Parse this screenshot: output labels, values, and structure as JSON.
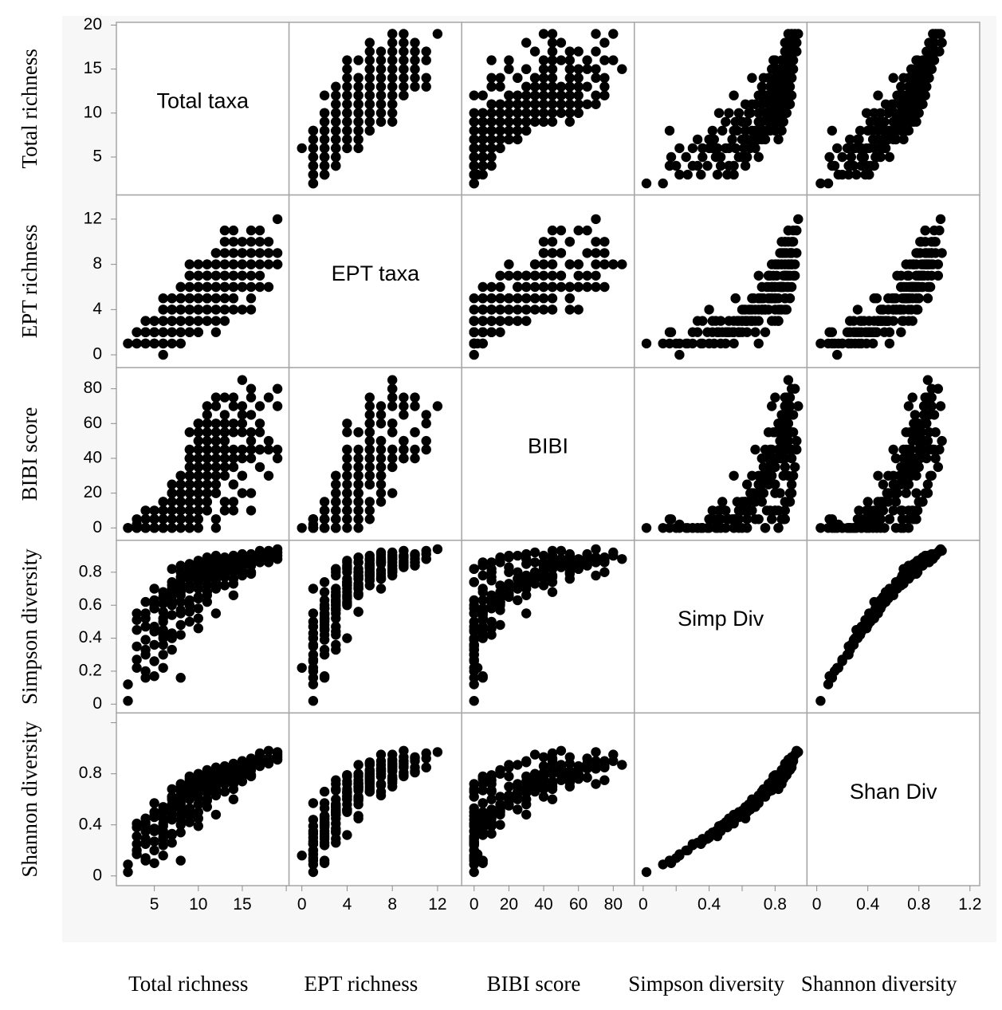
{
  "chart_data": {
    "type": "scatter",
    "variables": [
      {
        "key": "total",
        "axis_label": "Total richness",
        "diagonal_label": "Total taxa",
        "range": [
          1.5,
          19.5
        ],
        "ticks": [
          5,
          10,
          15,
          20
        ],
        "x_tick_labels": [
          "5",
          "10",
          "15"
        ],
        "y_tick_labels": [
          "5",
          "10",
          "15",
          "20"
        ]
      },
      {
        "key": "ept",
        "axis_label": "EPT richness",
        "diagonal_label": "EPT taxa",
        "range": [
          -0.5,
          13.5
        ],
        "ticks": [
          0,
          4,
          8,
          12
        ],
        "x_tick_labels": [
          "0",
          "4",
          "8",
          "12"
        ],
        "y_tick_labels": [
          "0",
          "4",
          "8",
          "12"
        ]
      },
      {
        "key": "bibi",
        "axis_label": "BIBI score",
        "diagonal_label": "BIBI",
        "range": [
          -3,
          88
        ],
        "ticks": [
          0,
          20,
          40,
          60,
          80
        ],
        "x_tick_labels": [
          "0",
          "20",
          "40",
          "60",
          "80"
        ],
        "y_tick_labels": [
          "0",
          "20",
          "40",
          "60",
          "80"
        ]
      },
      {
        "key": "simpson",
        "axis_label": "Simpson diversity",
        "diagonal_label": "Simp Div",
        "range": [
          -0.01,
          0.95
        ],
        "ticks": [
          0,
          0.2,
          0.4,
          0.6,
          0.8
        ],
        "x_tick_labels": [
          "0",
          "0.4",
          "0.8"
        ],
        "y_tick_labels": [
          "0",
          "0.2",
          "0.4",
          "0.6",
          "0.8"
        ]
      },
      {
        "key": "shannon",
        "axis_label": "Shannon diversity",
        "diagonal_label": "Shan Div",
        "range": [
          -0.02,
          1.22
        ],
        "ticks": [
          0,
          0.4,
          0.8,
          1.2
        ],
        "x_tick_labels": [
          "0",
          "0.4",
          "0.8",
          "1.2"
        ],
        "y_tick_labels": [
          "0",
          "0.4",
          "0.8"
        ]
      }
    ],
    "points": [
      [
        2,
        1,
        0,
        0.02,
        0.03
      ],
      [
        3,
        1,
        2,
        0.22,
        0.17
      ],
      [
        3,
        2,
        5,
        0.51,
        0.38
      ],
      [
        3,
        1,
        0,
        0.27,
        0.2
      ],
      [
        3,
        2,
        0,
        0.45,
        0.31
      ],
      [
        4,
        1,
        0,
        0.3,
        0.25
      ],
      [
        4,
        2,
        5,
        0.55,
        0.42
      ],
      [
        4,
        3,
        10,
        0.62,
        0.45
      ],
      [
        4,
        1,
        0,
        0.2,
        0.14
      ],
      [
        4,
        2,
        0,
        0.39,
        0.29
      ],
      [
        5,
        2,
        5,
        0.17,
        0.1
      ],
      [
        5,
        3,
        5,
        0.63,
        0.5
      ],
      [
        5,
        1,
        0,
        0.26,
        0.2
      ],
      [
        5,
        2,
        10,
        0.58,
        0.47
      ],
      [
        5,
        3,
        5,
        0.47,
        0.37
      ],
      [
        5,
        1,
        0,
        0.36,
        0.27
      ],
      [
        6,
        0,
        0,
        0.22,
        0.16
      ],
      [
        6,
        2,
        5,
        0.45,
        0.35
      ],
      [
        6,
        3,
        15,
        0.68,
        0.54
      ],
      [
        6,
        4,
        10,
        0.65,
        0.52
      ],
      [
        6,
        5,
        5,
        0.56,
        0.45
      ],
      [
        6,
        1,
        0,
        0.4,
        0.3
      ],
      [
        6,
        2,
        0,
        0.3,
        0.24
      ],
      [
        6,
        3,
        5,
        0.52,
        0.41
      ],
      [
        7,
        1,
        5,
        0.43,
        0.33
      ],
      [
        7,
        3,
        10,
        0.6,
        0.48
      ],
      [
        7,
        4,
        20,
        0.7,
        0.6
      ],
      [
        7,
        5,
        15,
        0.72,
        0.62
      ],
      [
        7,
        2,
        5,
        0.54,
        0.44
      ],
      [
        7,
        3,
        20,
        0.66,
        0.55
      ],
      [
        7,
        4,
        5,
        0.4,
        0.32
      ],
      [
        8,
        1,
        5,
        0.16,
        0.12
      ],
      [
        8,
        3,
        30,
        0.66,
        0.56
      ],
      [
        8,
        4,
        20,
        0.73,
        0.63
      ],
      [
        8,
        5,
        10,
        0.77,
        0.67
      ],
      [
        8,
        6,
        25,
        0.8,
        0.7
      ],
      [
        8,
        2,
        15,
        0.48,
        0.4
      ],
      [
        8,
        3,
        5,
        0.42,
        0.34
      ],
      [
        8,
        4,
        15,
        0.62,
        0.52
      ],
      [
        8,
        5,
        30,
        0.7,
        0.6
      ],
      [
        8,
        6,
        10,
        0.75,
        0.66
      ],
      [
        9,
        2,
        10,
        0.5,
        0.42
      ],
      [
        9,
        3,
        25,
        0.7,
        0.6
      ],
      [
        9,
        4,
        35,
        0.76,
        0.66
      ],
      [
        9,
        5,
        20,
        0.8,
        0.7
      ],
      [
        9,
        6,
        45,
        0.82,
        0.74
      ],
      [
        9,
        7,
        30,
        0.85,
        0.78
      ],
      [
        9,
        8,
        40,
        0.78,
        0.7
      ],
      [
        9,
        3,
        15,
        0.6,
        0.51
      ],
      [
        9,
        4,
        40,
        0.72,
        0.62
      ],
      [
        9,
        5,
        5,
        0.56,
        0.47
      ],
      [
        10,
        3,
        20,
        0.65,
        0.56
      ],
      [
        10,
        4,
        30,
        0.74,
        0.65
      ],
      [
        10,
        5,
        45,
        0.78,
        0.7
      ],
      [
        10,
        6,
        50,
        0.83,
        0.75
      ],
      [
        10,
        7,
        60,
        0.86,
        0.8
      ],
      [
        10,
        8,
        35,
        0.8,
        0.73
      ],
      [
        10,
        2,
        10,
        0.46,
        0.39
      ],
      [
        10,
        5,
        25,
        0.7,
        0.61
      ],
      [
        10,
        6,
        40,
        0.76,
        0.68
      ],
      [
        10,
        4,
        55,
        0.82,
        0.74
      ],
      [
        11,
        3,
        15,
        0.62,
        0.54
      ],
      [
        11,
        4,
        25,
        0.72,
        0.65
      ],
      [
        11,
        5,
        55,
        0.8,
        0.73
      ],
      [
        11,
        6,
        40,
        0.84,
        0.78
      ],
      [
        11,
        7,
        50,
        0.87,
        0.82
      ],
      [
        11,
        8,
        60,
        0.82,
        0.76
      ],
      [
        11,
        5,
        30,
        0.76,
        0.69
      ],
      [
        11,
        6,
        70,
        0.78,
        0.72
      ],
      [
        11,
        4,
        45,
        0.68,
        0.6
      ],
      [
        11,
        7,
        35,
        0.86,
        0.8
      ],
      [
        12,
        4,
        45,
        0.74,
        0.68
      ],
      [
        12,
        5,
        35,
        0.78,
        0.72
      ],
      [
        12,
        6,
        60,
        0.84,
        0.79
      ],
      [
        12,
        7,
        50,
        0.86,
        0.82
      ],
      [
        12,
        8,
        70,
        0.88,
        0.84
      ],
      [
        12,
        9,
        40,
        0.83,
        0.78
      ],
      [
        12,
        3,
        30,
        0.55,
        0.48
      ],
      [
        12,
        6,
        75,
        0.8,
        0.75
      ],
      [
        12,
        5,
        55,
        0.76,
        0.7
      ],
      [
        12,
        7,
        20,
        0.7,
        0.63
      ],
      [
        13,
        5,
        40,
        0.8,
        0.75
      ],
      [
        13,
        6,
        55,
        0.84,
        0.8
      ],
      [
        13,
        7,
        65,
        0.87,
        0.84
      ],
      [
        13,
        8,
        75,
        0.89,
        0.86
      ],
      [
        13,
        9,
        45,
        0.85,
        0.81
      ],
      [
        13,
        11,
        50,
        0.88,
        0.85
      ],
      [
        13,
        4,
        30,
        0.72,
        0.66
      ],
      [
        13,
        6,
        35,
        0.78,
        0.73
      ],
      [
        13,
        8,
        60,
        0.82,
        0.78
      ],
      [
        14,
        4,
        10,
        0.66,
        0.6
      ],
      [
        14,
        6,
        45,
        0.83,
        0.8
      ],
      [
        14,
        7,
        70,
        0.86,
        0.84
      ],
      [
        14,
        8,
        55,
        0.9,
        0.88
      ],
      [
        14,
        9,
        75,
        0.87,
        0.85
      ],
      [
        14,
        10,
        40,
        0.84,
        0.81
      ],
      [
        14,
        7,
        25,
        0.76,
        0.72
      ],
      [
        14,
        5,
        35,
        0.73,
        0.68
      ],
      [
        15,
        6,
        60,
        0.85,
        0.83
      ],
      [
        15,
        8,
        85,
        0.88,
        0.87
      ],
      [
        15,
        9,
        45,
        0.9,
        0.9
      ],
      [
        15,
        10,
        70,
        0.86,
        0.85
      ],
      [
        15,
        7,
        40,
        0.81,
        0.78
      ],
      [
        15,
        8,
        55,
        0.84,
        0.82
      ],
      [
        15,
        6,
        30,
        0.78,
        0.74
      ],
      [
        16,
        4,
        10,
        0.8,
        0.79
      ],
      [
        16,
        7,
        50,
        0.88,
        0.87
      ],
      [
        16,
        8,
        80,
        0.9,
        0.9
      ],
      [
        16,
        9,
        40,
        0.86,
        0.86
      ],
      [
        16,
        11,
        65,
        0.91,
        0.92
      ],
      [
        16,
        8,
        45,
        0.84,
        0.83
      ],
      [
        17,
        6,
        45,
        0.87,
        0.88
      ],
      [
        17,
        9,
        70,
        0.89,
        0.9
      ],
      [
        17,
        10,
        55,
        0.91,
        0.93
      ],
      [
        17,
        8,
        60,
        0.86,
        0.86
      ],
      [
        18,
        6,
        30,
        0.88,
        0.89
      ],
      [
        18,
        10,
        45,
        0.9,
        0.92
      ],
      [
        18,
        8,
        75,
        0.86,
        0.88
      ],
      [
        19,
        8,
        80,
        0.92,
        0.95
      ],
      [
        19,
        9,
        40,
        0.9,
        0.93
      ],
      [
        19,
        12,
        70,
        0.94,
        0.97
      ],
      [
        19,
        8,
        45,
        0.88,
        0.91
      ],
      [
        2,
        1,
        0,
        0.12,
        0.09
      ],
      [
        3,
        1,
        0,
        0.35,
        0.25
      ],
      [
        4,
        2,
        0,
        0.16,
        0.12
      ],
      [
        5,
        2,
        0,
        0.6,
        0.47
      ],
      [
        6,
        1,
        0,
        0.5,
        0.39
      ],
      [
        4,
        1,
        0,
        0.47,
        0.35
      ],
      [
        7,
        2,
        0,
        0.33,
        0.26
      ],
      [
        8,
        1,
        0,
        0.55,
        0.44
      ],
      [
        6,
        3,
        0,
        0.36,
        0.29
      ],
      [
        9,
        2,
        0,
        0.63,
        0.53
      ],
      [
        10,
        3,
        0,
        0.58,
        0.5
      ],
      [
        5,
        1,
        5,
        0.7,
        0.57
      ],
      [
        7,
        4,
        0,
        0.74,
        0.62
      ],
      [
        8,
        2,
        5,
        0.68,
        0.57
      ],
      [
        9,
        3,
        5,
        0.78,
        0.67
      ],
      [
        10,
        2,
        5,
        0.52,
        0.45
      ],
      [
        11,
        3,
        10,
        0.8,
        0.72
      ],
      [
        12,
        2,
        0,
        0.74,
        0.66
      ],
      [
        12,
        4,
        5,
        0.86,
        0.78
      ],
      [
        13,
        3,
        10,
        0.82,
        0.75
      ],
      [
        14,
        5,
        15,
        0.86,
        0.8
      ],
      [
        15,
        4,
        20,
        0.83,
        0.78
      ],
      [
        9,
        5,
        0,
        0.82,
        0.72
      ],
      [
        10,
        6,
        5,
        0.85,
        0.76
      ],
      [
        11,
        5,
        10,
        0.86,
        0.78
      ],
      [
        13,
        6,
        15,
        0.88,
        0.82
      ],
      [
        16,
        5,
        20,
        0.89,
        0.87
      ],
      [
        7,
        3,
        0,
        0.82,
        0.68
      ],
      [
        8,
        4,
        5,
        0.84,
        0.72
      ],
      [
        11,
        7,
        15,
        0.89,
        0.83
      ],
      [
        12,
        8,
        20,
        0.9,
        0.85
      ],
      [
        14,
        6,
        25,
        0.9,
        0.87
      ],
      [
        15,
        7,
        30,
        0.91,
        0.9
      ],
      [
        17,
        7,
        35,
        0.92,
        0.95
      ],
      [
        18,
        9,
        50,
        0.93,
        0.98
      ],
      [
        10,
        4,
        60,
        0.87,
        0.79
      ],
      [
        11,
        6,
        65,
        0.84,
        0.77
      ],
      [
        9,
        6,
        55,
        0.85,
        0.76
      ],
      [
        13,
        7,
        45,
        0.77,
        0.72
      ],
      [
        14,
        8,
        35,
        0.8,
        0.76
      ],
      [
        16,
        6,
        55,
        0.79,
        0.78
      ],
      [
        12,
        6,
        25,
        0.72,
        0.66
      ],
      [
        11,
        5,
        20,
        0.66,
        0.59
      ],
      [
        10,
        4,
        15,
        0.64,
        0.56
      ],
      [
        9,
        4,
        10,
        0.6,
        0.51
      ],
      [
        8,
        3,
        15,
        0.57,
        0.48
      ],
      [
        7,
        3,
        25,
        0.63,
        0.52
      ],
      [
        6,
        2,
        10,
        0.42,
        0.33
      ],
      [
        5,
        3,
        0,
        0.44,
        0.35
      ],
      [
        4,
        2,
        5,
        0.52,
        0.4
      ],
      [
        3,
        2,
        0,
        0.55,
        0.41
      ],
      [
        4,
        3,
        0,
        0.33,
        0.26
      ],
      [
        5,
        2,
        5,
        0.58,
        0.46
      ],
      [
        6,
        4,
        15,
        0.61,
        0.5
      ],
      [
        7,
        5,
        20,
        0.67,
        0.56
      ],
      [
        8,
        5,
        25,
        0.71,
        0.61
      ],
      [
        9,
        7,
        30,
        0.76,
        0.66
      ],
      [
        10,
        7,
        35,
        0.79,
        0.71
      ],
      [
        11,
        8,
        40,
        0.81,
        0.75
      ],
      [
        12,
        9,
        50,
        0.84,
        0.79
      ],
      [
        13,
        10,
        55,
        0.86,
        0.82
      ],
      [
        14,
        11,
        60,
        0.88,
        0.85
      ],
      [
        15,
        9,
        65,
        0.89,
        0.88
      ],
      [
        16,
        10,
        75,
        0.88,
        0.9
      ],
      [
        17,
        11,
        45,
        0.93,
        0.96
      ]
    ]
  }
}
